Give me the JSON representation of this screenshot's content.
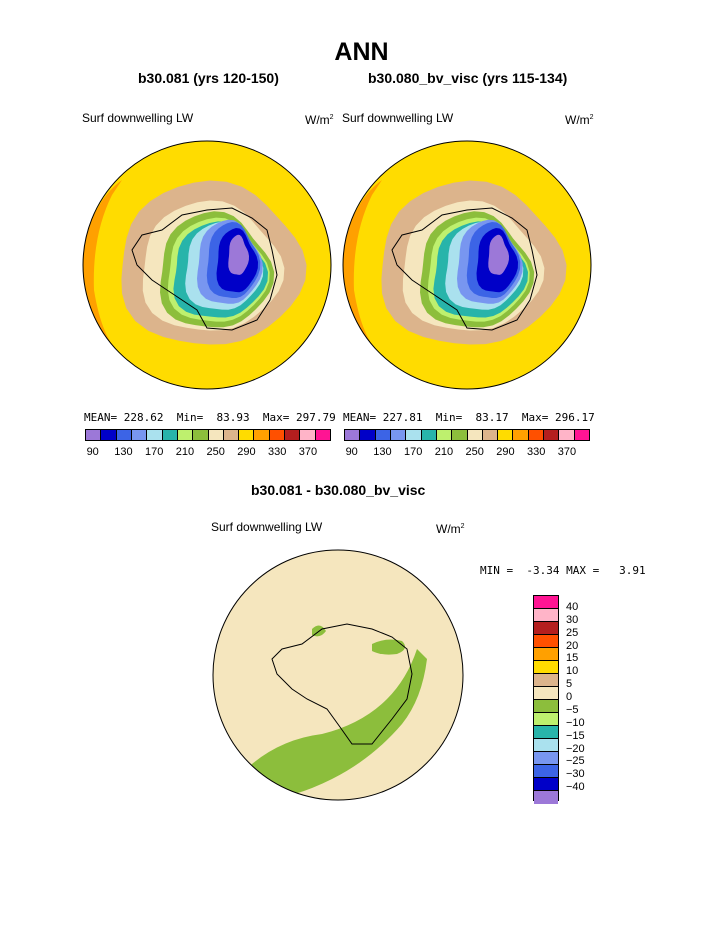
{
  "title": "ANN",
  "panels": [
    {
      "subtitle": "b30.081 (yrs 120-150)",
      "variable": "Surf downwelling LW",
      "units_base": "W/m",
      "units_exp": "2",
      "stats": {
        "mean_label": "MEAN=",
        "mean": "228.62",
        "min_label": "Min=",
        "min": "83.93",
        "max_label": "Max=",
        "max": "297.79"
      }
    },
    {
      "subtitle": "b30.080_bv_visc (yrs 115-134)",
      "variable": "Surf downwelling LW",
      "units_base": "W/m",
      "units_exp": "2",
      "stats": {
        "mean_label": "MEAN=",
        "mean": "227.81",
        "min_label": "Min=",
        "min": "83.17",
        "max_label": "Max=",
        "max": "296.17"
      }
    }
  ],
  "colorbar_top": {
    "colors": [
      "#9c78d8",
      "#0000c8",
      "#3c64e6",
      "#7896f0",
      "#aae1ee",
      "#28b4aa",
      "#bef06e",
      "#8cbe3c",
      "#f5e6be",
      "#dcb48c",
      "#ffdc00",
      "#ffa000",
      "#ff5000",
      "#b41e1e",
      "#ffb4c8",
      "#ff1493"
    ],
    "tick_labels": [
      "90",
      "130",
      "170",
      "210",
      "250",
      "290",
      "330",
      "370"
    ]
  },
  "diff_panel": {
    "subtitle": "b30.081 - b30.080_bv_visc",
    "variable": "Surf downwelling LW",
    "units_base": "W/m",
    "units_exp": "2",
    "stats": {
      "min_label": "MIN =",
      "min": "-3.34",
      "max_label": "MAX =",
      "max": "3.91"
    }
  },
  "colorbar_diff": {
    "colors": [
      "#ff1493",
      "#ffb4c8",
      "#b41e1e",
      "#ff5000",
      "#ffa000",
      "#ffdc00",
      "#dcb48c",
      "#f5e6be",
      "#8cbe3c",
      "#bef06e",
      "#28b4aa",
      "#aae1ee",
      "#7896f0",
      "#3c64e6",
      "#0000c8",
      "#9c78d8"
    ],
    "tick_labels": [
      "40",
      "30",
      "25",
      "20",
      "15",
      "10",
      "5",
      "0",
      "−5",
      "−10",
      "−15",
      "−20",
      "−25",
      "−30",
      "−40"
    ]
  },
  "map_colors": {
    "outer": "#ffdc00",
    "ring_tan": "#dcb48c",
    "ring_cream": "#f5e6be",
    "ring_green": "#8cbe3c",
    "ring_lightgreen": "#bef06e",
    "teal": "#28b4aa",
    "lightblue": "#aae1ee",
    "periwinkle": "#7896f0",
    "blue": "#3c64e6",
    "navy": "#0000c8",
    "purple": "#9c78d8",
    "orange": "#ffa000",
    "diff_bg": "#f5e6be",
    "diff_green": "#8cbe3c"
  }
}
